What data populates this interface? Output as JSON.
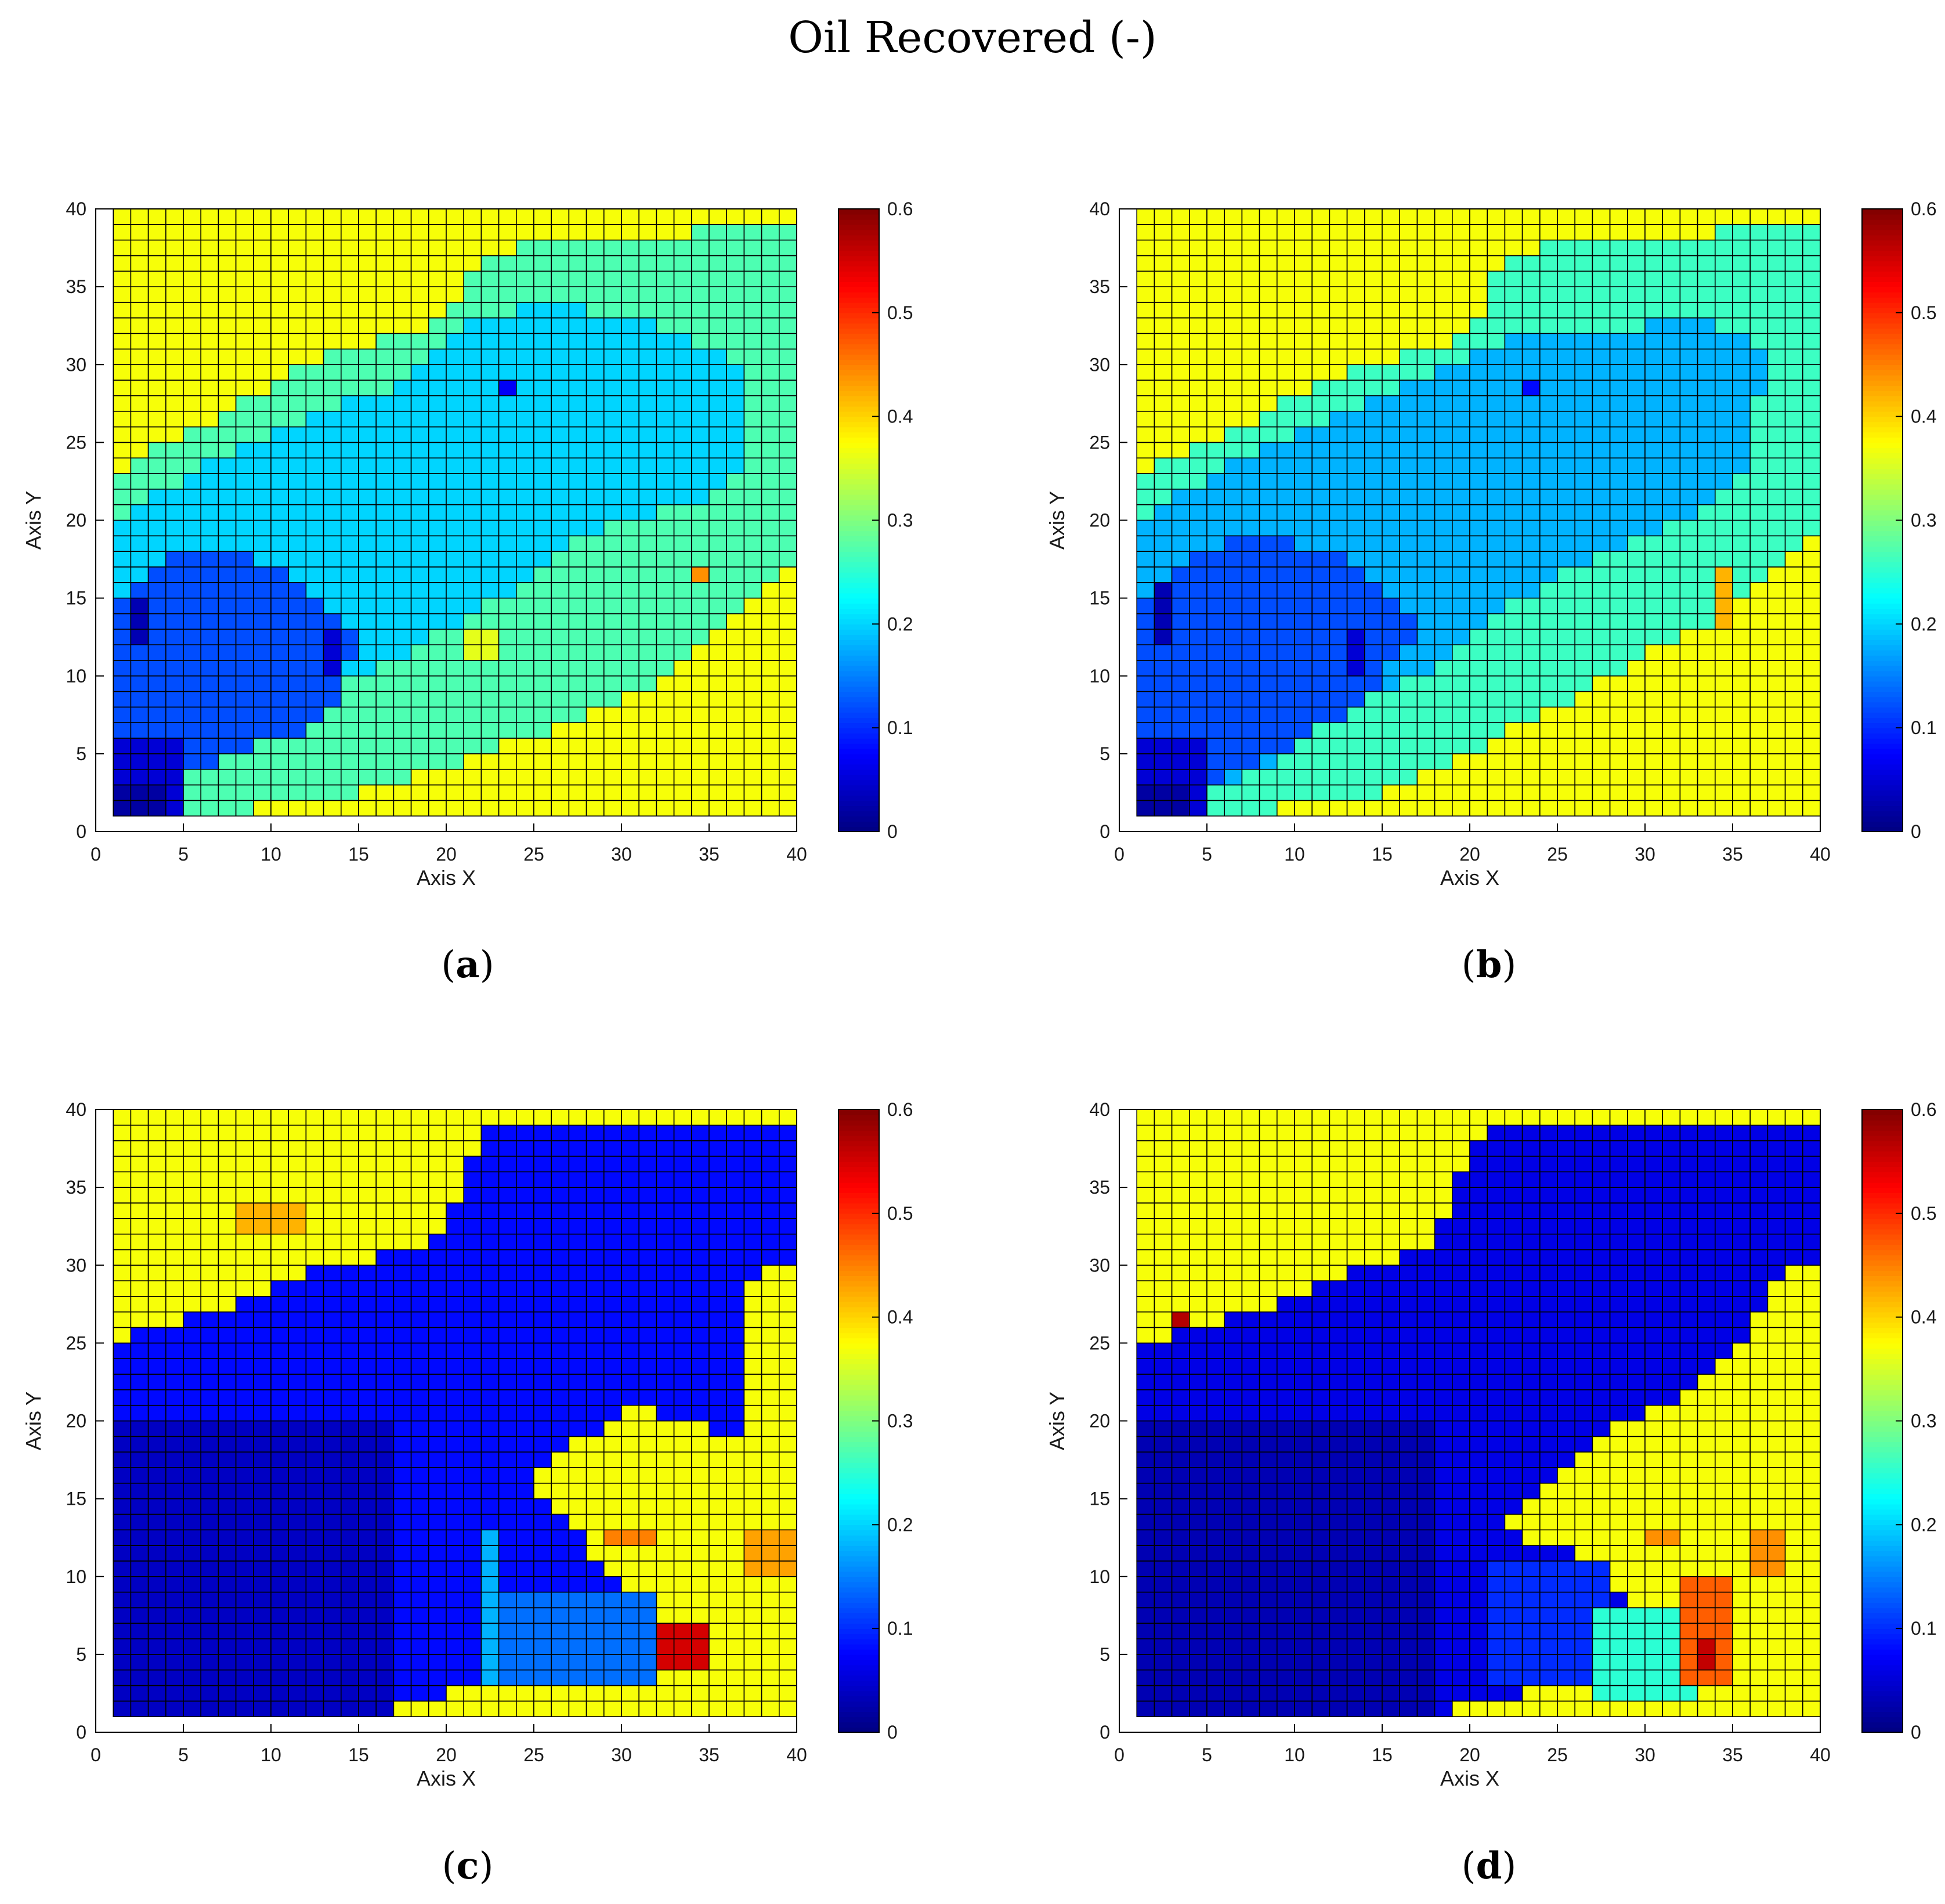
{
  "figure": {
    "title": "Oil Recovered (-)",
    "panel_labels": [
      "a",
      "b",
      "c",
      "d"
    ]
  },
  "colors": {
    "colormap": "jet",
    "grid_line": "#000000"
  },
  "chart_data": [
    {
      "type": "heatmap",
      "panel": "a",
      "xlabel": "Axis X",
      "ylabel": "Axis Y",
      "xlim": [
        0,
        40
      ],
      "ylim": [
        0,
        40
      ],
      "xticks": [
        0,
        5,
        10,
        15,
        20,
        25,
        30,
        35,
        40
      ],
      "yticks": [
        0,
        5,
        10,
        15,
        20,
        25,
        30,
        35,
        40
      ],
      "grid_cells": [
        39,
        39
      ],
      "cell_x_range": [
        1,
        40
      ],
      "cell_y_range": [
        1,
        40
      ],
      "colorbar": {
        "min": 0,
        "max": 0.6,
        "ticks": [
          0,
          0.1,
          0.2,
          0.3,
          0.4,
          0.5,
          0.6
        ]
      },
      "regions": [
        {
          "shape": "rect",
          "x": [
            1,
            40
          ],
          "y": [
            1,
            40
          ],
          "value": 0.37
        },
        {
          "shape": "poly",
          "points": [
            [
              1,
              23
            ],
            [
              6,
              26
            ],
            [
              12,
              30
            ],
            [
              20,
              33
            ],
            [
              22,
              37
            ],
            [
              26,
              38
            ],
            [
              32,
              38
            ],
            [
              36,
              39
            ],
            [
              40,
              39
            ],
            [
              40,
              18
            ],
            [
              37,
              14
            ],
            [
              33,
              10
            ],
            [
              27,
              7
            ],
            [
              20,
              4
            ],
            [
              14,
              2
            ],
            [
              5,
              1
            ],
            [
              1,
              1
            ]
          ],
          "value": 0.27
        },
        {
          "shape": "poly",
          "points": [
            [
              1,
              20
            ],
            [
              7,
              24
            ],
            [
              13,
              27
            ],
            [
              18,
              29
            ],
            [
              22,
              33
            ],
            [
              26,
              34
            ],
            [
              31,
              33
            ],
            [
              37,
              30
            ],
            [
              37,
              23
            ],
            [
              34,
              21
            ],
            [
              28,
              19
            ],
            [
              23,
              15
            ],
            [
              17,
              11
            ],
            [
              12,
              8
            ],
            [
              8,
              5
            ],
            [
              4,
              3
            ],
            [
              1,
              3
            ]
          ],
          "value": 0.2
        },
        {
          "shape": "poly",
          "points": [
            [
              1,
              14
            ],
            [
              4,
              18
            ],
            [
              8,
              18
            ],
            [
              12,
              16
            ],
            [
              15,
              12
            ],
            [
              13,
              7
            ],
            [
              8,
              5
            ],
            [
              4,
              3
            ],
            [
              1,
              2
            ]
          ],
          "value": 0.12
        },
        {
          "shape": "rect",
          "x": [
            1,
            5
          ],
          "y": [
            1,
            6
          ],
          "value": 0.05
        },
        {
          "shape": "rect",
          "x": [
            1,
            4
          ],
          "y": [
            1,
            3
          ],
          "value": 0.02
        },
        {
          "shape": "rect",
          "x": [
            2,
            3
          ],
          "y": [
            12,
            15
          ],
          "value": 0.03
        },
        {
          "shape": "rect",
          "x": [
            13,
            14
          ],
          "y": [
            10,
            13
          ],
          "value": 0.05
        },
        {
          "shape": "rect",
          "x": [
            23,
            24
          ],
          "y": [
            28,
            29
          ],
          "value": 0.07
        },
        {
          "shape": "rect",
          "x": [
            34,
            35
          ],
          "y": [
            16,
            17
          ],
          "value": 0.44
        },
        {
          "shape": "rect",
          "x": [
            21,
            23
          ],
          "y": [
            11,
            13
          ],
          "value": 0.36
        }
      ]
    },
    {
      "type": "heatmap",
      "panel": "b",
      "xlabel": "Axis X",
      "ylabel": "Axis Y",
      "xlim": [
        0,
        40
      ],
      "ylim": [
        0,
        40
      ],
      "xticks": [
        0,
        5,
        10,
        15,
        20,
        25,
        30,
        35,
        40
      ],
      "yticks": [
        0,
        5,
        10,
        15,
        20,
        25,
        30,
        35,
        40
      ],
      "grid_cells": [
        39,
        39
      ],
      "cell_x_range": [
        1,
        40
      ],
      "cell_y_range": [
        1,
        40
      ],
      "colorbar": {
        "min": 0,
        "max": 0.6,
        "ticks": [
          0,
          0.1,
          0.2,
          0.3,
          0.4,
          0.5,
          0.6
        ]
      },
      "regions": [
        {
          "shape": "rect",
          "x": [
            1,
            40
          ],
          "y": [
            1,
            40
          ],
          "value": 0.37
        },
        {
          "shape": "poly",
          "points": [
            [
              1,
              23
            ],
            [
              7,
              26
            ],
            [
              12,
              29
            ],
            [
              20,
              32
            ],
            [
              22,
              37
            ],
            [
              26,
              38
            ],
            [
              32,
              38
            ],
            [
              36,
              39
            ],
            [
              40,
              39
            ],
            [
              40,
              20
            ],
            [
              37,
              16
            ],
            [
              33,
              13
            ],
            [
              28,
              10
            ],
            [
              20,
              5
            ],
            [
              14,
              2
            ],
            [
              5,
              1
            ],
            [
              1,
              1
            ]
          ],
          "value": 0.26
        },
        {
          "shape": "poly",
          "points": [
            [
              1,
              20
            ],
            [
              7,
              24
            ],
            [
              13,
              27
            ],
            [
              19,
              30
            ],
            [
              23,
              32
            ],
            [
              28,
              32
            ],
            [
              33,
              33
            ],
            [
              37,
              31
            ],
            [
              36,
              24
            ],
            [
              34,
              21
            ],
            [
              28,
              18
            ],
            [
              23,
              15
            ],
            [
              17,
              10
            ],
            [
              12,
              7
            ],
            [
              8,
              4
            ],
            [
              4,
              2
            ],
            [
              1,
              2
            ]
          ],
          "value": 0.18
        },
        {
          "shape": "poly",
          "points": [
            [
              1,
              14
            ],
            [
              4,
              18
            ],
            [
              8,
              19
            ],
            [
              13,
              18
            ],
            [
              17,
              13
            ],
            [
              14,
              8
            ],
            [
              9,
              5
            ],
            [
              5,
              3
            ],
            [
              1,
              2
            ]
          ],
          "value": 0.12
        },
        {
          "shape": "rect",
          "x": [
            1,
            5
          ],
          "y": [
            1,
            6
          ],
          "value": 0.05
        },
        {
          "shape": "rect",
          "x": [
            1,
            4
          ],
          "y": [
            1,
            3
          ],
          "value": 0.02
        },
        {
          "shape": "rect",
          "x": [
            2,
            3
          ],
          "y": [
            12,
            16
          ],
          "value": 0.03
        },
        {
          "shape": "rect",
          "x": [
            13,
            14
          ],
          "y": [
            10,
            13
          ],
          "value": 0.05
        },
        {
          "shape": "rect",
          "x": [
            23,
            24
          ],
          "y": [
            28,
            29
          ],
          "value": 0.08
        },
        {
          "shape": "rect",
          "x": [
            34,
            35
          ],
          "y": [
            13,
            17
          ],
          "value": 0.42
        }
      ]
    },
    {
      "type": "heatmap",
      "panel": "c",
      "xlabel": "Axis X",
      "ylabel": "Axis Y",
      "xlim": [
        0,
        40
      ],
      "ylim": [
        0,
        40
      ],
      "xticks": [
        0,
        5,
        10,
        15,
        20,
        25,
        30,
        35,
        40
      ],
      "yticks": [
        0,
        5,
        10,
        15,
        20,
        25,
        30,
        35,
        40
      ],
      "grid_cells": [
        39,
        39
      ],
      "cell_x_range": [
        1,
        40
      ],
      "cell_y_range": [
        1,
        40
      ],
      "colorbar": {
        "min": 0,
        "max": 0.6,
        "ticks": [
          0,
          0.1,
          0.2,
          0.3,
          0.4,
          0.5,
          0.6
        ]
      },
      "regions": [
        {
          "shape": "rect",
          "x": [
            1,
            40
          ],
          "y": [
            1,
            40
          ],
          "value": 0.37
        },
        {
          "shape": "poly",
          "points": [
            [
              1,
              25
            ],
            [
              9,
              28
            ],
            [
              13,
              30
            ],
            [
              19,
              31
            ],
            [
              21,
              35
            ],
            [
              22,
              39
            ],
            [
              30,
              39
            ],
            [
              36,
              39
            ],
            [
              40,
              39
            ],
            [
              40,
              30
            ],
            [
              37,
              29
            ],
            [
              37,
              19
            ],
            [
              34,
              20
            ],
            [
              31,
              21
            ],
            [
              28,
              19
            ],
            [
              25,
              16
            ],
            [
              28,
              12
            ],
            [
              31,
              9
            ],
            [
              33,
              7
            ],
            [
              28,
              5
            ],
            [
              23,
              3
            ],
            [
              17,
              2
            ],
            [
              10,
              1
            ],
            [
              1,
              1
            ]
          ],
          "value": 0.08
        },
        {
          "shape": "rect",
          "x": [
            1,
            17
          ],
          "y": [
            1,
            20
          ],
          "value": 0.04
        },
        {
          "shape": "rect",
          "x": [
            22,
            23
          ],
          "y": [
            3,
            13
          ],
          "value": 0.18
        },
        {
          "shape": "rect",
          "x": [
            23,
            32
          ],
          "y": [
            3,
            9
          ],
          "value": 0.14
        },
        {
          "shape": "rect",
          "x": [
            8,
            12
          ],
          "y": [
            32,
            34
          ],
          "value": 0.42
        },
        {
          "shape": "rect",
          "x": [
            29,
            32
          ],
          "y": [
            12,
            13
          ],
          "value": 0.45
        },
        {
          "shape": "rect",
          "x": [
            32,
            35
          ],
          "y": [
            4,
            7
          ],
          "value": 0.55
        },
        {
          "shape": "rect",
          "x": [
            37,
            40
          ],
          "y": [
            10,
            13
          ],
          "value": 0.43
        }
      ]
    },
    {
      "type": "heatmap",
      "panel": "d",
      "xlabel": "Axis X",
      "ylabel": "Axis Y",
      "xlim": [
        0,
        40
      ],
      "ylim": [
        0,
        40
      ],
      "xticks": [
        0,
        5,
        10,
        15,
        20,
        25,
        30,
        35,
        40
      ],
      "yticks": [
        0,
        5,
        10,
        15,
        20,
        25,
        30,
        35,
        40
      ],
      "grid_cells": [
        39,
        39
      ],
      "cell_x_range": [
        1,
        40
      ],
      "cell_y_range": [
        1,
        40
      ],
      "colorbar": {
        "min": 0,
        "max": 0.6,
        "ticks": [
          0,
          0.1,
          0.2,
          0.3,
          0.4,
          0.5,
          0.6
        ]
      },
      "regions": [
        {
          "shape": "rect",
          "x": [
            1,
            40
          ],
          "y": [
            1,
            40
          ],
          "value": 0.37
        },
        {
          "shape": "poly",
          "points": [
            [
              1,
              25
            ],
            [
              8,
              27
            ],
            [
              12,
              29
            ],
            [
              18,
              31
            ],
            [
              19,
              35
            ],
            [
              21,
              39
            ],
            [
              30,
              39
            ],
            [
              36,
              39
            ],
            [
              40,
              39
            ],
            [
              40,
              30
            ],
            [
              37,
              29
            ],
            [
              36,
              25
            ],
            [
              33,
              22
            ],
            [
              29,
              20
            ],
            [
              25,
              16
            ],
            [
              21,
              13
            ],
            [
              26,
              12
            ],
            [
              29,
              8
            ],
            [
              28,
              4
            ],
            [
              22,
              2
            ],
            [
              17,
              1
            ],
            [
              1,
              1
            ]
          ],
          "value": 0.06
        },
        {
          "shape": "rect",
          "x": [
            1,
            18
          ],
          "y": [
            1,
            20
          ],
          "value": 0.03
        },
        {
          "shape": "rect",
          "x": [
            21,
            28
          ],
          "y": [
            3,
            11
          ],
          "value": 0.1
        },
        {
          "shape": "rect",
          "x": [
            27,
            33
          ],
          "y": [
            2,
            8
          ],
          "value": 0.25
        },
        {
          "shape": "rect",
          "x": [
            3,
            4
          ],
          "y": [
            26,
            27
          ],
          "value": 0.57
        },
        {
          "shape": "rect",
          "x": [
            32,
            35
          ],
          "y": [
            3,
            10
          ],
          "value": 0.47
        },
        {
          "shape": "rect",
          "x": [
            33,
            34
          ],
          "y": [
            4,
            6
          ],
          "value": 0.56
        },
        {
          "shape": "rect",
          "x": [
            36,
            38
          ],
          "y": [
            10,
            13
          ],
          "value": 0.44
        },
        {
          "shape": "rect",
          "x": [
            30,
            32
          ],
          "y": [
            12,
            13
          ],
          "value": 0.44
        }
      ]
    }
  ]
}
